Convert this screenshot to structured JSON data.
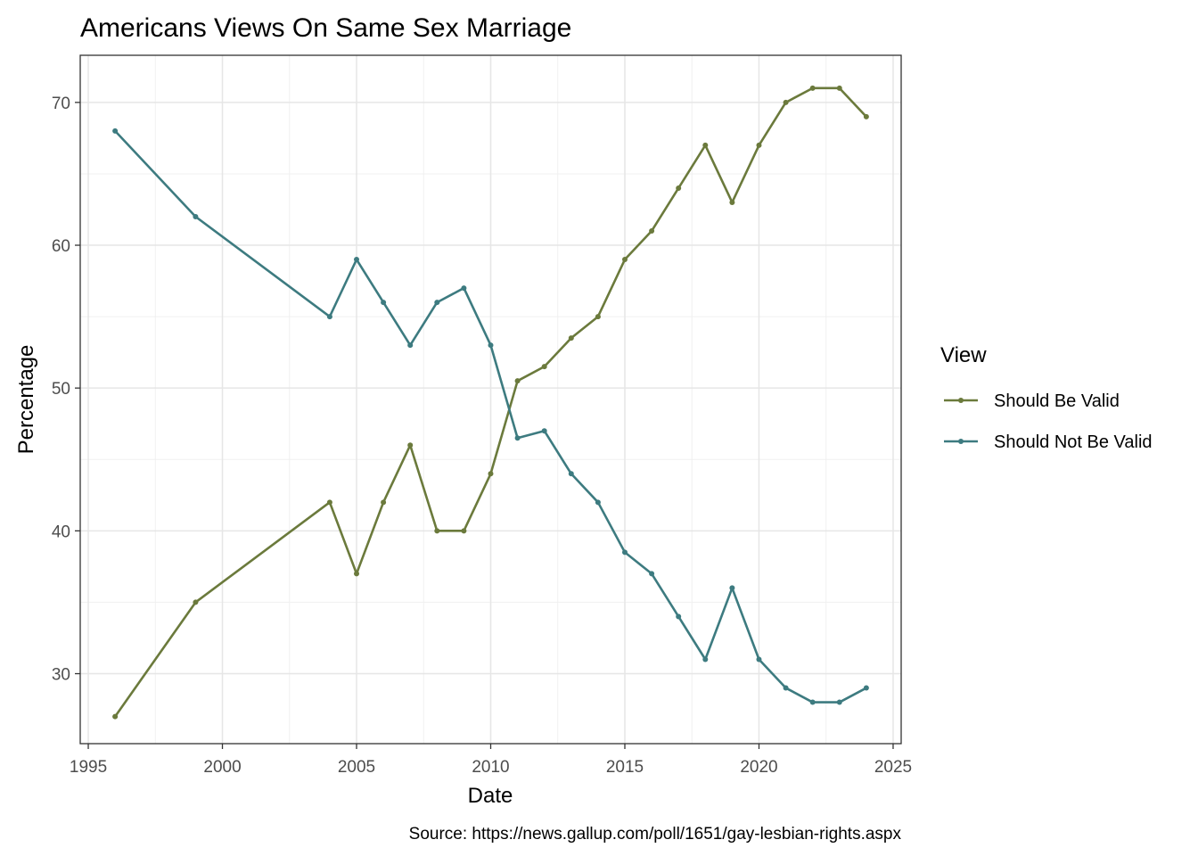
{
  "chart_data": {
    "type": "line",
    "title": "Americans Views On Same Sex Marriage",
    "xlabel": "Date",
    "ylabel": "Percentage",
    "caption": "Source: https://news.gallup.com/poll/1651/gay-lesbian-rights.aspx",
    "xlim": [
      1994.7,
      2025.3
    ],
    "ylim": [
      25.1,
      73.3
    ],
    "x_ticks": [
      1995,
      2000,
      2005,
      2010,
      2015,
      2020,
      2025
    ],
    "y_ticks": [
      30,
      40,
      50,
      60,
      70
    ],
    "grid": true,
    "legend": {
      "title": "View",
      "position": "right"
    },
    "x": [
      1996,
      1999,
      2004,
      2005,
      2006,
      2007,
      2008,
      2009,
      2010,
      2011,
      2012,
      2013,
      2014,
      2015,
      2016,
      2017,
      2018,
      2019,
      2020,
      2021,
      2022,
      2023,
      2024
    ],
    "series": [
      {
        "name": "Should Be Valid",
        "color": "#6b7a3c",
        "values": [
          27,
          35,
          42,
          37,
          42,
          46,
          40,
          40,
          44,
          50.5,
          51.5,
          53.5,
          55,
          59,
          61,
          64,
          67,
          63,
          67,
          70,
          71,
          71,
          69
        ]
      },
      {
        "name": "Should Not Be Valid",
        "color": "#3d7b80",
        "values": [
          68,
          62,
          55,
          59,
          56,
          53,
          56,
          57,
          53,
          46.5,
          47,
          44,
          42,
          38.5,
          37,
          34,
          31,
          36,
          31,
          29,
          28,
          28,
          29
        ]
      }
    ]
  }
}
